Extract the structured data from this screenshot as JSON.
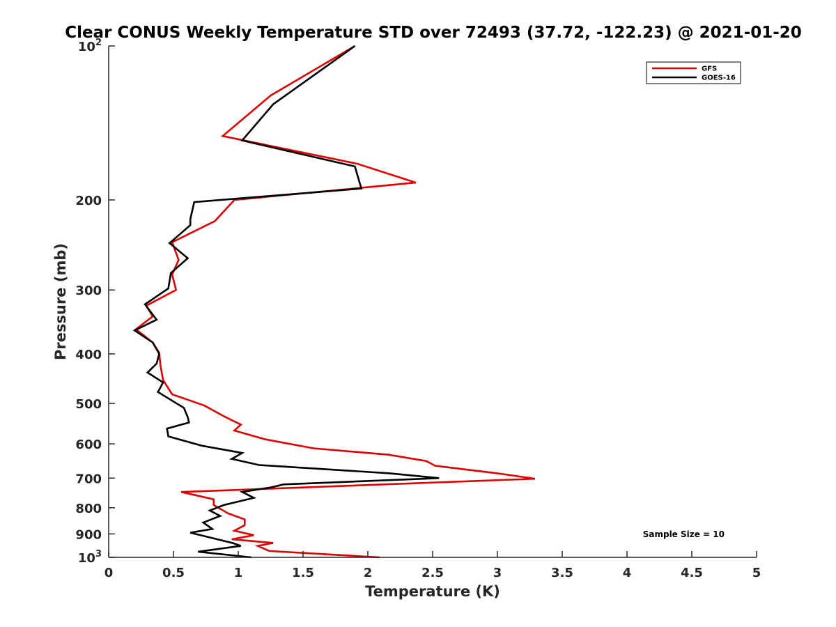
{
  "chart_data": {
    "type": "line",
    "title": "Clear CONUS Weekly Temperature STD over 72493 (37.72, -122.23) @ 2021-01-20",
    "xlabel": "Temperature (K)",
    "ylabel": "Pressure (mb)",
    "xlim": [
      0,
      5
    ],
    "ylim": [
      100,
      1000
    ],
    "y_scale": "log",
    "y_reversed": true,
    "xticks": [
      "0",
      "0.5",
      "1",
      "1.5",
      "2",
      "2.5",
      "3",
      "3.5",
      "4",
      "4.5",
      "5"
    ],
    "yticks": [
      {
        "value": 100,
        "base": "10",
        "exp": "2"
      },
      {
        "value": 200,
        "label": "200"
      },
      {
        "value": 300,
        "label": "300"
      },
      {
        "value": 400,
        "label": "400"
      },
      {
        "value": 500,
        "label": "500"
      },
      {
        "value": 600,
        "label": "600"
      },
      {
        "value": 700,
        "label": "700"
      },
      {
        "value": 800,
        "label": "800"
      },
      {
        "value": 900,
        "label": "900"
      },
      {
        "value": 1000,
        "base": "10",
        "exp": "3"
      }
    ],
    "grid": false,
    "legend_position": "top-right",
    "annotation": "Sample Size = 10",
    "series": [
      {
        "name": "GFS",
        "color": "#dd0000",
        "points": [
          [
            1.9,
            100
          ],
          [
            1.25,
            125
          ],
          [
            0.88,
            150
          ],
          [
            1.92,
            170
          ],
          [
            2.37,
            185
          ],
          [
            0.97,
            200
          ],
          [
            0.82,
            220
          ],
          [
            0.49,
            242
          ],
          [
            0.54,
            262
          ],
          [
            0.49,
            280
          ],
          [
            0.52,
            300
          ],
          [
            0.29,
            322
          ],
          [
            0.34,
            338
          ],
          [
            0.21,
            358
          ],
          [
            0.34,
            380
          ],
          [
            0.39,
            398
          ],
          [
            0.4,
            422
          ],
          [
            0.42,
            450
          ],
          [
            0.49,
            480
          ],
          [
            0.74,
            505
          ],
          [
            0.89,
            530
          ],
          [
            1.02,
            550
          ],
          [
            0.97,
            565
          ],
          [
            1.21,
            588
          ],
          [
            1.58,
            612
          ],
          [
            2.16,
            630
          ],
          [
            2.45,
            648
          ],
          [
            2.52,
            662
          ],
          [
            3.0,
            685
          ],
          [
            3.29,
            702
          ],
          [
            0.56,
            745
          ],
          [
            0.81,
            770
          ],
          [
            0.81,
            790
          ],
          [
            0.92,
            820
          ],
          [
            1.05,
            843
          ],
          [
            1.05,
            865
          ],
          [
            0.97,
            887
          ],
          [
            1.12,
            905
          ],
          [
            0.95,
            922
          ],
          [
            1.27,
            937
          ],
          [
            1.15,
            950
          ],
          [
            1.24,
            972
          ],
          [
            2.09,
            1000
          ]
        ]
      },
      {
        "name": "GOES-16",
        "color": "#000000",
        "points": [
          [
            1.9,
            100
          ],
          [
            1.27,
            130
          ],
          [
            1.03,
            153
          ],
          [
            1.9,
            172
          ],
          [
            1.95,
            190
          ],
          [
            0.66,
            202
          ],
          [
            0.63,
            218
          ],
          [
            0.63,
            224
          ],
          [
            0.47,
            243
          ],
          [
            0.61,
            260
          ],
          [
            0.48,
            278
          ],
          [
            0.46,
            298
          ],
          [
            0.28,
            320
          ],
          [
            0.37,
            343
          ],
          [
            0.2,
            360
          ],
          [
            0.34,
            380
          ],
          [
            0.39,
            400
          ],
          [
            0.37,
            418
          ],
          [
            0.3,
            435
          ],
          [
            0.42,
            455
          ],
          [
            0.38,
            475
          ],
          [
            0.58,
            510
          ],
          [
            0.61,
            532
          ],
          [
            0.62,
            545
          ],
          [
            0.45,
            560
          ],
          [
            0.46,
            580
          ],
          [
            0.72,
            605
          ],
          [
            1.03,
            625
          ],
          [
            0.95,
            642
          ],
          [
            1.16,
            660
          ],
          [
            2.17,
            685
          ],
          [
            2.55,
            700
          ],
          [
            1.35,
            720
          ],
          [
            1.25,
            730
          ],
          [
            1.03,
            745
          ],
          [
            1.12,
            765
          ],
          [
            0.89,
            790
          ],
          [
            0.78,
            810
          ],
          [
            0.86,
            830
          ],
          [
            0.73,
            855
          ],
          [
            0.8,
            880
          ],
          [
            0.63,
            895
          ],
          [
            0.96,
            938
          ],
          [
            1.02,
            950
          ],
          [
            0.69,
            975
          ],
          [
            1.1,
            1000
          ]
        ]
      }
    ]
  }
}
